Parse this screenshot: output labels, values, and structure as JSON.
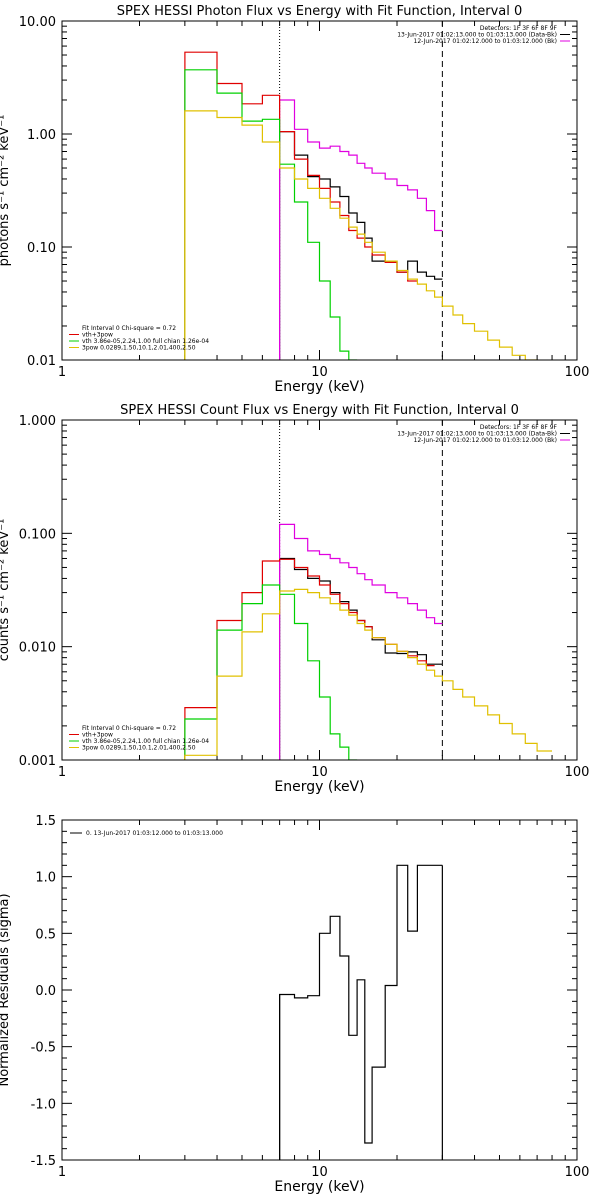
{
  "chart_data": [
    {
      "type": "line",
      "title": "SPEX HESSI Photon Flux vs Energy with Fit Function, Interval 0",
      "xlabel": "Energy (keV)",
      "ylabel": "photons s⁻¹ cm⁻² keV⁻¹",
      "xscale": "log",
      "yscale": "log",
      "xlim": [
        1,
        100
      ],
      "ylim": [
        0.01,
        10
      ],
      "xticks": [
        1,
        10,
        100
      ],
      "xtick_labels": [
        "1",
        "10",
        "100"
      ],
      "yticks": [
        0.01,
        0.1,
        1,
        10
      ],
      "ytick_labels": [
        "0.01",
        "0.10",
        "1.00",
        "10.00"
      ],
      "minor_x_ticks": true,
      "vlines": [
        {
          "x": 7,
          "style": "dotted",
          "color": "#000000"
        },
        {
          "x": 30,
          "style": "dashed",
          "color": "#000000"
        }
      ],
      "legend_top_right": [
        "Detectors: 1F 3F 6F 8F 9F",
        "13-Jun-2017 01:02:13.000 to 01:03:13.000 (Data-Bk)",
        "12-Jun-2017 01:02:12.000 to 01:03:12.000 (Bk)"
      ],
      "legend_top_right_colors": [
        "",
        "#000000",
        "#e000e0"
      ],
      "legend_bottom_left": [
        "Fit Interval 0   Chi-square = 0.72",
        "vth+3pow",
        "vth 3.86e-05,2.24,1.00  full chian 1.26e-04",
        "3pow 0.0289,1.50,10.1,2.01,400,2.50"
      ],
      "legend_bottom_left_colors": [
        "",
        "#e00000",
        "#00d000",
        "#e0c000"
      ],
      "edges": [
        3,
        4,
        5,
        6,
        7,
        8,
        9,
        10,
        11,
        12,
        13,
        14,
        15,
        16,
        18,
        20,
        22,
        24,
        26,
        28,
        30,
        33,
        36,
        40,
        45,
        50,
        56,
        63,
        70,
        80
      ],
      "series": [
        {
          "name": "Data-Bk",
          "color": "#000000",
          "values": [
            null,
            null,
            null,
            null,
            1.05,
            0.65,
            0.42,
            0.4,
            0.34,
            0.28,
            0.2,
            0.165,
            0.12,
            0.075,
            0.075,
            0.06,
            0.075,
            0.06,
            0.055,
            0.052,
            null,
            null,
            null,
            null,
            null,
            null,
            null,
            null,
            null
          ]
        },
        {
          "name": "Bk",
          "color": "#e000e0",
          "values": [
            null,
            null,
            null,
            null,
            2.0,
            1.1,
            0.85,
            0.75,
            0.78,
            0.7,
            0.65,
            0.55,
            0.5,
            0.45,
            0.4,
            0.35,
            0.32,
            0.27,
            0.21,
            0.14,
            null,
            null,
            null,
            null,
            null,
            null,
            null,
            null,
            null
          ]
        },
        {
          "name": "vth+3pow",
          "color": "#e00000",
          "values": [
            5.3,
            2.8,
            1.85,
            2.2,
            1.05,
            0.6,
            0.43,
            0.33,
            0.25,
            0.19,
            0.14,
            0.12,
            0.1,
            0.085,
            0.073,
            0.06,
            0.05,
            null,
            null,
            null,
            null,
            null,
            null,
            null,
            null,
            null,
            null,
            null,
            null
          ]
        },
        {
          "name": "vth",
          "color": "#00d000",
          "values": [
            3.7,
            2.3,
            1.3,
            1.35,
            0.54,
            0.25,
            0.11,
            0.05,
            0.024,
            0.012,
            0.01,
            null,
            null,
            null,
            null,
            null,
            null,
            null,
            null,
            null,
            null,
            null,
            null,
            null,
            null,
            null,
            null,
            null,
            null
          ]
        },
        {
          "name": "3pow",
          "color": "#e0c000",
          "values": [
            1.6,
            1.4,
            1.2,
            0.85,
            0.5,
            0.4,
            0.33,
            0.27,
            0.22,
            0.18,
            0.15,
            0.13,
            0.11,
            0.09,
            0.075,
            0.062,
            0.052,
            0.047,
            0.041,
            0.036,
            0.03,
            0.025,
            0.021,
            0.018,
            0.015,
            0.013,
            0.011,
            0.01,
            null
          ]
        }
      ]
    },
    {
      "type": "line",
      "title": "SPEX HESSI Count Flux vs Energy with Fit Function, Interval 0",
      "xlabel": "Energy (keV)",
      "ylabel": "counts s⁻¹ cm⁻² keV⁻¹",
      "xscale": "log",
      "yscale": "log",
      "xlim": [
        1,
        100
      ],
      "ylim": [
        0.001,
        1
      ],
      "xticks": [
        1,
        10,
        100
      ],
      "xtick_labels": [
        "1",
        "10",
        "100"
      ],
      "yticks": [
        0.001,
        0.01,
        0.1,
        1
      ],
      "ytick_labels": [
        "0.001",
        "0.010",
        "0.100",
        "1.000"
      ],
      "minor_x_ticks": true,
      "vlines": [
        {
          "x": 7,
          "style": "dotted",
          "color": "#000000"
        },
        {
          "x": 30,
          "style": "dashed",
          "color": "#000000"
        }
      ],
      "legend_top_right": [
        "Detectors: 1F 3F 6F 8F 9F",
        "13-Jun-2017 01:02:13.000 to 01:03:13.000 (Data-Bk)",
        "12-Jun-2017 01:02:12.000 to 01:03:12.000 (Bk)"
      ],
      "legend_top_right_colors": [
        "",
        "#000000",
        "#e000e0"
      ],
      "legend_bottom_left": [
        "Fit Interval 0   Chi-square = 0.72",
        "vth+3pow",
        "vth 3.86e-05,2.24,1.00  full chian 1.26e-04",
        "3pow 0.0289,1.50,10.1,2.01,400,2.50"
      ],
      "legend_bottom_left_colors": [
        "",
        "#e00000",
        "#00d000",
        "#e0c000"
      ],
      "edges": [
        3,
        4,
        5,
        6,
        7,
        8,
        9,
        10,
        11,
        12,
        13,
        14,
        15,
        16,
        18,
        20,
        22,
        24,
        26,
        28,
        30,
        33,
        36,
        40,
        45,
        50,
        56,
        63,
        70,
        80
      ],
      "series": [
        {
          "name": "Data-Bk",
          "color": "#000000",
          "values": [
            null,
            null,
            null,
            null,
            0.06,
            0.048,
            0.04,
            0.038,
            0.03,
            0.025,
            0.021,
            0.017,
            0.015,
            0.0115,
            0.0088,
            0.0087,
            0.009,
            0.0085,
            0.007,
            0.007,
            null,
            null,
            null,
            null,
            null,
            null,
            null,
            null,
            null
          ]
        },
        {
          "name": "Bk",
          "color": "#e000e0",
          "values": [
            null,
            null,
            null,
            null,
            0.12,
            0.09,
            0.07,
            0.065,
            0.06,
            0.055,
            0.05,
            0.044,
            0.039,
            0.035,
            0.03,
            0.027,
            0.024,
            0.021,
            0.018,
            0.016,
            null,
            null,
            null,
            null,
            null,
            null,
            null,
            null,
            null
          ]
        },
        {
          "name": "vth+3pow",
          "color": "#e00000",
          "values": [
            0.0029,
            0.017,
            0.03,
            0.057,
            0.059,
            0.05,
            0.042,
            0.035,
            0.029,
            0.024,
            0.02,
            0.017,
            0.015,
            0.012,
            0.0105,
            0.0091,
            0.0083,
            0.0075,
            0.0068,
            null,
            null,
            null,
            null,
            null,
            null,
            null,
            null,
            null,
            null
          ]
        },
        {
          "name": "vth",
          "color": "#00d000",
          "values": [
            0.0023,
            0.014,
            0.024,
            0.035,
            0.029,
            0.016,
            0.0075,
            0.0036,
            0.0017,
            0.0013,
            0.001,
            null,
            null,
            null,
            null,
            null,
            null,
            null,
            null,
            null,
            null,
            null,
            null,
            null,
            null,
            null,
            null,
            null,
            null
          ]
        },
        {
          "name": "3pow",
          "color": "#e0c000",
          "values": [
            0.0011,
            0.0055,
            0.0135,
            0.0195,
            0.031,
            0.032,
            0.03,
            0.027,
            0.024,
            0.021,
            0.019,
            0.016,
            0.014,
            0.012,
            0.0105,
            0.0091,
            0.008,
            0.007,
            0.0062,
            0.0055,
            0.005,
            0.0042,
            0.0036,
            0.003,
            0.0025,
            0.0021,
            0.0017,
            0.0014,
            0.0012
          ]
        }
      ]
    },
    {
      "type": "line",
      "title": "",
      "xlabel": "Energy (keV)",
      "ylabel": "Normalized Residuals (sigma)",
      "xscale": "log",
      "yscale": "linear",
      "xlim": [
        1,
        100
      ],
      "ylim": [
        -1.5,
        1.5
      ],
      "xticks": [
        1,
        10,
        100
      ],
      "xtick_labels": [
        "1",
        "10",
        "100"
      ],
      "yticks": [
        -1.5,
        -1.0,
        -0.5,
        0.0,
        0.5,
        1.0,
        1.5
      ],
      "ytick_labels": [
        "-1.5",
        "-1.0",
        "-0.5",
        "0.0",
        "0.5",
        "1.0",
        "1.5"
      ],
      "minor_x_ticks": true,
      "vlines": [],
      "legend_top_left": [
        "0. 13-Jun-2017 01:03:12.000 to 01:03:13.000"
      ],
      "legend_top_left_colors": [
        "#000000"
      ],
      "edges": [
        7,
        8,
        9,
        10,
        11,
        12,
        13,
        14,
        15,
        16,
        18,
        20,
        22,
        24,
        26,
        28,
        30
      ],
      "series": [
        {
          "name": "residuals",
          "color": "#000000",
          "values": [
            -0.04,
            -0.07,
            -0.05,
            0.5,
            0.65,
            0.3,
            -0.4,
            0.09,
            -1.35,
            -0.68,
            0.04,
            1.1,
            0.52,
            1.1,
            1.1,
            1.1
          ]
        }
      ],
      "drop_lines_to_bottom": [
        7,
        30
      ]
    }
  ]
}
